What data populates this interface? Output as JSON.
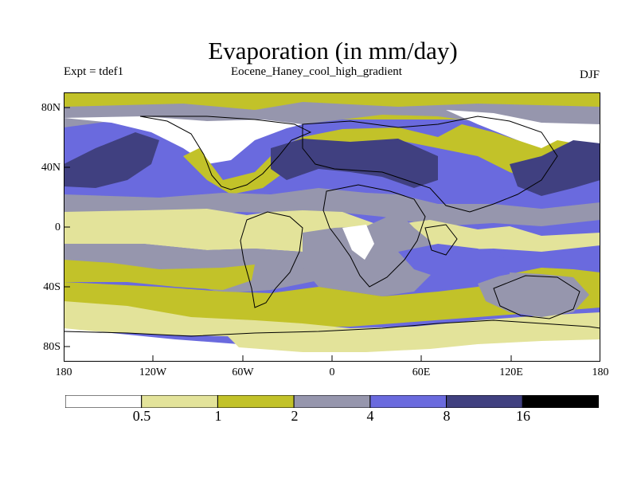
{
  "title": "Evaporation (in mm/day)",
  "subtitle_left": "Expt = tdef1",
  "subtitle_center": "Eocene_Haney_cool_high_gradient",
  "subtitle_right": "DJF",
  "y_ticks": [
    "80N",
    "40N",
    "0",
    "40S",
    "80S"
  ],
  "x_ticks": [
    "180",
    "120W",
    "60W",
    "0",
    "60E",
    "120E",
    "180"
  ],
  "colorbar": {
    "levels": [
      "0.5",
      "1",
      "2",
      "4",
      "8",
      "16"
    ],
    "colors": [
      "#ffffff",
      "#e3e39a",
      "#c2c229",
      "#9696ad",
      "#6a6ade",
      "#404080",
      "#000000"
    ]
  }
}
